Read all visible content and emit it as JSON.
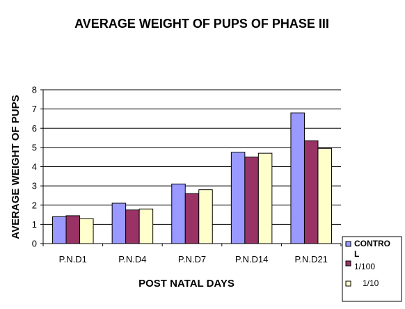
{
  "chart_data": {
    "type": "bar",
    "title": "AVERAGE WEIGHT OF PUPS OF PHASE III",
    "xlabel": "POST NATAL DAYS",
    "ylabel": "AVERAGE WEIGHT OF PUPS",
    "categories": [
      "P.N.D1",
      "P.N.D4",
      "P.N.D7",
      "P.N.D14",
      "P.N.D21"
    ],
    "series": [
      {
        "name": "CONTROL",
        "legend_lines": [
          "CONTRO",
          "L"
        ],
        "color": "#9999ff",
        "values": [
          1.4,
          2.1,
          3.1,
          4.75,
          6.8
        ]
      },
      {
        "name": "1/100",
        "legend_lines": [
          "1/100"
        ],
        "color": "#993366",
        "values": [
          1.45,
          1.75,
          2.6,
          4.5,
          5.35
        ]
      },
      {
        "name": "1/10",
        "legend_lines": [
          "1/10"
        ],
        "color": "#ffffcc",
        "values": [
          1.3,
          1.8,
          2.8,
          4.7,
          4.95
        ]
      }
    ],
    "ylim": [
      0,
      8
    ],
    "yticks": [
      "0",
      "1",
      "2",
      "3",
      "4",
      "5",
      "6",
      "7",
      "8"
    ],
    "grid": true,
    "legend_position": "bottom-right"
  }
}
